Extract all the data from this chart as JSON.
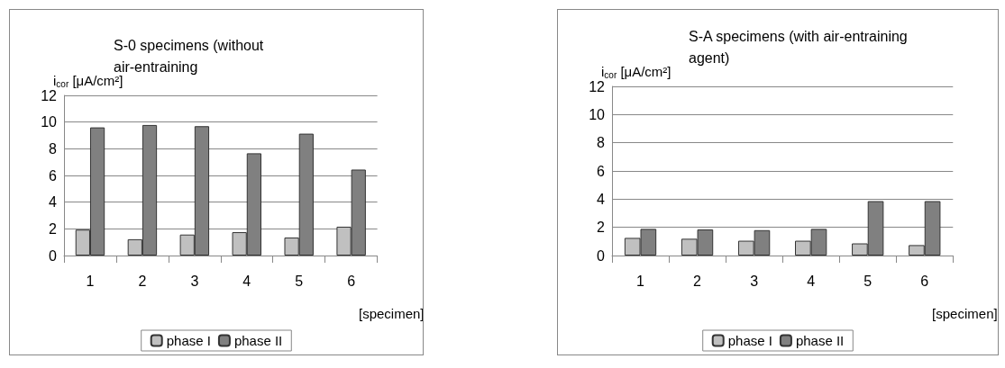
{
  "chart_data": [
    {
      "type": "bar",
      "title": "S-0 specimens (without air-entraining",
      "ylabel": "i$_{cor}$ [μA/cm²]",
      "xlabel": "[specimen]",
      "categories": [
        "1",
        "2",
        "3",
        "4",
        "5",
        "6"
      ],
      "series": [
        {
          "name": "phase I",
          "color": "#c0c0c0",
          "values": [
            1.94,
            1.22,
            1.57,
            1.75,
            1.35,
            2.16
          ]
        },
        {
          "name": "phase II",
          "color": "#808080",
          "values": [
            9.6,
            9.78,
            9.69,
            7.66,
            9.13,
            6.44
          ]
        }
      ],
      "ylim": [
        0,
        12
      ],
      "yticks": [
        0,
        2,
        4,
        6,
        8,
        10,
        12
      ],
      "grid": "y",
      "legend": "bottom"
    },
    {
      "type": "bar",
      "title": "S-A specimens (with air-entraining agent)",
      "ylabel": "i$_{cor}$ [μA/cm²]",
      "xlabel": "[specimen]",
      "categories": [
        "1",
        "2",
        "3",
        "4",
        "5",
        "6"
      ],
      "series": [
        {
          "name": "phase I",
          "color": "#c0c0c0",
          "values": [
            1.25,
            1.19,
            1.05,
            1.05,
            0.86,
            0.74
          ]
        },
        {
          "name": "phase II",
          "color": "#808080",
          "values": [
            1.89,
            1.85,
            1.8,
            1.89,
            3.86,
            3.86
          ]
        }
      ],
      "ylim": [
        0,
        12
      ],
      "yticks": [
        0,
        2,
        4,
        6,
        8,
        10,
        12
      ],
      "grid": "y",
      "legend": "bottom"
    }
  ]
}
